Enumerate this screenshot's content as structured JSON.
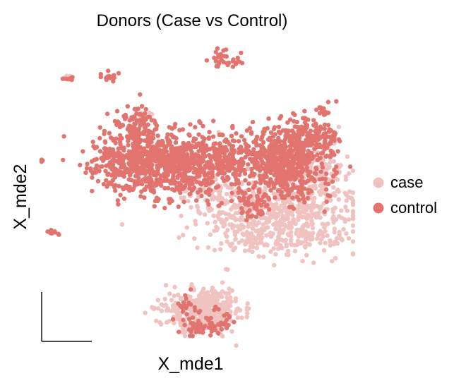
{
  "chart_data": {
    "type": "scatter",
    "title": "Donors (Case vs Control)",
    "xlabel": "X_mde1",
    "ylabel": "X_mde2",
    "legend_position": "right",
    "grid": false,
    "ticks": false,
    "colors": {
      "case": "#f0c3c0",
      "control": "#e27470"
    },
    "series": [
      {
        "name": "case",
        "color": "#f0c3c0",
        "clusters": [
          {
            "cx": 395,
            "cy": 305,
            "sx": 55,
            "sy": 28,
            "n": 650
          },
          {
            "cx": 450,
            "cy": 240,
            "sx": 22,
            "sy": 20,
            "n": 120
          },
          {
            "cx": 290,
            "cy": 440,
            "sx": 27,
            "sy": 15,
            "n": 420
          },
          {
            "cx": 300,
            "cy": 272,
            "sx": 22,
            "sy": 10,
            "n": 40
          },
          {
            "cx": 355,
            "cy": 340,
            "sx": 12,
            "sy": 9,
            "n": 40
          },
          {
            "cx": 205,
            "cy": 160,
            "sx": 6,
            "sy": 4,
            "n": 10
          },
          {
            "cx": 322,
            "cy": 384,
            "sx": 2,
            "sy": 2,
            "n": 3
          },
          {
            "cx": 96,
            "cy": 110,
            "sx": 3,
            "sy": 2,
            "n": 3
          }
        ]
      },
      {
        "name": "control",
        "color": "#e27470",
        "clusters": [
          {
            "cx": 215,
            "cy": 232,
            "sx": 42,
            "sy": 21,
            "n": 750
          },
          {
            "cx": 310,
            "cy": 225,
            "sx": 42,
            "sy": 20,
            "n": 330
          },
          {
            "cx": 405,
            "cy": 232,
            "sx": 30,
            "sy": 24,
            "n": 520
          },
          {
            "cx": 440,
            "cy": 195,
            "sx": 22,
            "sy": 15,
            "n": 170
          },
          {
            "cx": 195,
            "cy": 175,
            "sx": 16,
            "sy": 12,
            "n": 80
          },
          {
            "cx": 355,
            "cy": 290,
            "sx": 18,
            "sy": 12,
            "n": 55
          },
          {
            "cx": 260,
            "cy": 265,
            "sx": 30,
            "sy": 10,
            "n": 50
          },
          {
            "cx": 292,
            "cy": 460,
            "sx": 17,
            "sy": 9,
            "n": 70
          },
          {
            "cx": 262,
            "cy": 435,
            "sx": 8,
            "sy": 7,
            "n": 15
          },
          {
            "cx": 320,
            "cy": 82,
            "sx": 13,
            "sy": 9,
            "n": 32
          },
          {
            "cx": 155,
            "cy": 110,
            "sx": 5,
            "sy": 3,
            "n": 16
          },
          {
            "cx": 99,
            "cy": 111,
            "sx": 4,
            "sy": 2,
            "n": 7
          },
          {
            "cx": 75,
            "cy": 330,
            "sx": 5,
            "sy": 2,
            "n": 10
          },
          {
            "cx": 59,
            "cy": 229,
            "sx": 1,
            "sy": 1,
            "n": 3
          },
          {
            "cx": 458,
            "cy": 155,
            "sx": 5,
            "sy": 5,
            "n": 12
          }
        ]
      }
    ]
  }
}
